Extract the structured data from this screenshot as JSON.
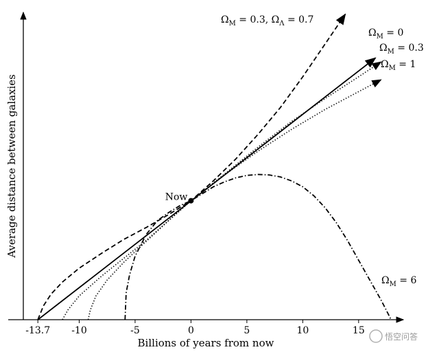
{
  "chart_data": {
    "type": "line",
    "xlabel": "Billions of years from now",
    "ylabel": "Average distance between galaxies",
    "xticks": [
      "-13.7",
      "-10",
      "-5",
      "0",
      "5",
      "10",
      "15"
    ],
    "xlim": [
      -15,
      19
    ],
    "ylim": [
      0,
      3.1
    ],
    "now_point": {
      "x": 0,
      "y": 1.2,
      "label": "Now"
    },
    "series": [
      {
        "name": "ΩM = 0.3, ΩΛ = 0.7",
        "style": "dashed",
        "arrow": true,
        "x": [
          -13.7,
          -13.2,
          -12.5,
          -11.5,
          -10,
          -8,
          -6,
          -4,
          -2,
          0,
          2,
          4,
          6,
          8,
          10,
          12,
          13.8
        ],
        "y": [
          0.0,
          0.14,
          0.26,
          0.38,
          0.52,
          0.67,
          0.81,
          0.93,
          1.06,
          1.2,
          1.4,
          1.62,
          1.87,
          2.14,
          2.45,
          2.78,
          3.08
        ]
      },
      {
        "name": "ΩM = 0",
        "style": "solid",
        "arrow": true,
        "x": [
          -13.7,
          16.5
        ],
        "y": [
          0.0,
          2.64
        ]
      },
      {
        "name": "ΩM = 0.3",
        "style": "dotted",
        "arrow": true,
        "x": [
          -11.5,
          -11.0,
          -10,
          -8,
          -6,
          -4,
          -2,
          0,
          3,
          6,
          9,
          12,
          15,
          17
        ],
        "y": [
          0.0,
          0.1,
          0.24,
          0.44,
          0.62,
          0.8,
          1.0,
          1.2,
          1.47,
          1.74,
          2.0,
          2.23,
          2.45,
          2.6
        ]
      },
      {
        "name": "ΩM = 1",
        "style": "dotted",
        "arrow": true,
        "x": [
          -9.2,
          -9.0,
          -8.5,
          -7.5,
          -6,
          -4,
          -2,
          0,
          3,
          6,
          9,
          12,
          15,
          17
        ],
        "y": [
          0.0,
          0.1,
          0.24,
          0.4,
          0.58,
          0.79,
          1.0,
          1.2,
          1.46,
          1.7,
          1.92,
          2.12,
          2.3,
          2.42
        ]
      },
      {
        "name": "ΩM = 6",
        "style": "dash-dot",
        "arrow": false,
        "x": [
          -5.9,
          -5.8,
          -5.5,
          -5,
          -4,
          -3,
          -2,
          -1,
          0,
          1,
          2,
          3,
          4,
          5,
          6,
          7,
          8,
          9,
          10,
          11,
          12,
          13,
          14,
          15,
          16,
          17,
          17.5,
          17.9
        ],
        "y": [
          0.0,
          0.27,
          0.45,
          0.64,
          0.86,
          1.0,
          1.08,
          1.15,
          1.2,
          1.27,
          1.34,
          1.39,
          1.43,
          1.455,
          1.465,
          1.46,
          1.44,
          1.4,
          1.34,
          1.25,
          1.13,
          0.98,
          0.8,
          0.6,
          0.4,
          0.2,
          0.09,
          0.0
        ]
      }
    ],
    "labels": [
      {
        "text": "Ω",
        "sub": "M",
        "rest": " = 0.3, Ω",
        "sub2": "Λ",
        "rest2": " = 0.7"
      },
      {
        "text": "Ω",
        "sub": "M",
        "rest": " = 0"
      },
      {
        "text": "Ω",
        "sub": "M",
        "rest": " = 0.3"
      },
      {
        "text": "Ω",
        "sub": "M",
        "rest": " = 1"
      },
      {
        "text": "Ω",
        "sub": "M",
        "rest": " = 6"
      }
    ]
  },
  "watermark": "悟空问答"
}
